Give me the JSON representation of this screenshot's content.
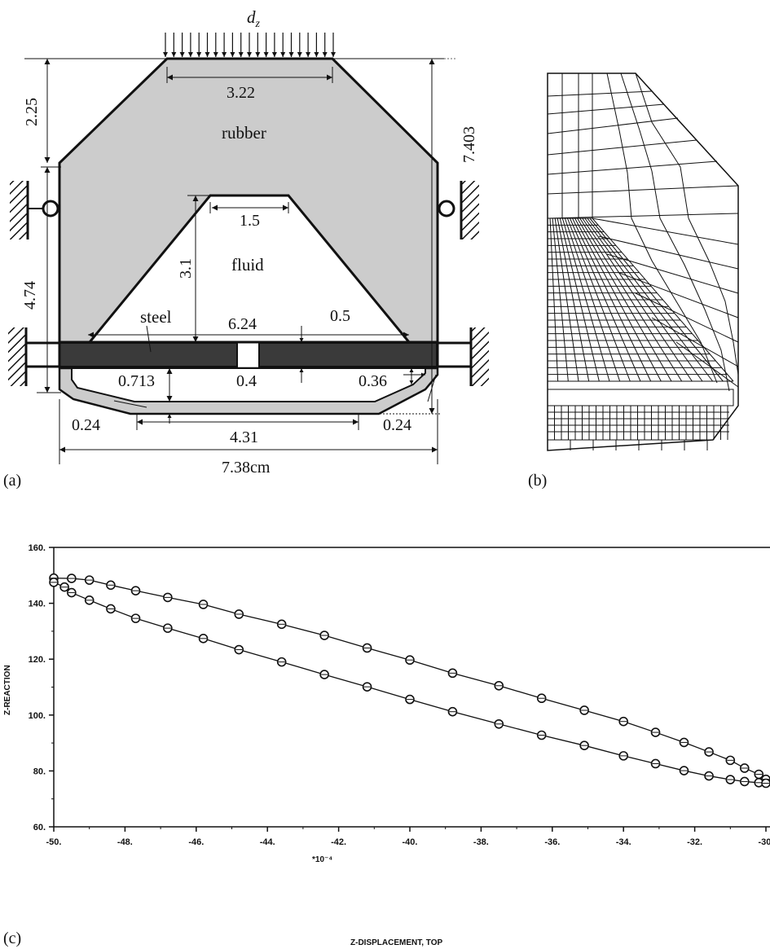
{
  "panel_a": {
    "load_label": "d_z",
    "dims": {
      "top_width": "3.22",
      "top_height": "2.25",
      "total_height": "7.403",
      "side_height": "4.74",
      "fluid_top_width": "1.5",
      "fluid_height": "3.1",
      "fluid_base": "6.24",
      "steel_thickness": "0.5",
      "gap": "0.4",
      "lower_cavity_height": "0.713",
      "corner_offset": "0.36",
      "wall_thickness_left": "0.24",
      "wall_thickness_right": "0.24",
      "bottom_width": "4.31",
      "total_width": "7.38cm"
    },
    "regions": {
      "rubber": "rubber",
      "fluid": "fluid",
      "steel": "steel"
    },
    "colors": {
      "rubber": "#cccccc",
      "steel": "#3a3a3a",
      "fluid": "#ffffff"
    },
    "panel_label": "(a)"
  },
  "panel_b": {
    "panel_label": "(b)"
  },
  "panel_c": {
    "panel_label": "(c)"
  },
  "chart_data": {
    "type": "line",
    "xlabel": "Z-DISPLACEMENT, TOP",
    "x_multiplier": "*10⁻⁴",
    "ylabel": "Z-REACTION",
    "x_ticks": [
      "-50.",
      "-48.",
      "-46.",
      "-44.",
      "-42.",
      "-40.",
      "-38.",
      "-36.",
      "-34.",
      "-32.",
      "-30."
    ],
    "y_ticks": [
      "60.",
      "80.",
      "100.",
      "120.",
      "140.",
      "160."
    ],
    "xlim": [
      -50,
      -30
    ],
    "ylim": [
      60,
      160
    ],
    "grid": false,
    "marker": "circle",
    "series": [
      {
        "x": [
          -50.0,
          -49.5,
          -49.0,
          -48.4,
          -47.7,
          -46.8,
          -45.8,
          -44.8,
          -43.6,
          -42.4,
          -41.2,
          -40.0,
          -38.8,
          -37.5,
          -36.3,
          -35.1,
          -34.0,
          -33.1,
          -32.3,
          -31.6,
          -31.0,
          -30.6,
          -30.2,
          -30.0
        ],
        "y": [
          149.0,
          148.9,
          148.3,
          146.5,
          144.5,
          142.1,
          139.6,
          136.1,
          132.5,
          128.5,
          124.0,
          119.7,
          115.0,
          110.5,
          106.0,
          101.7,
          97.7,
          93.8,
          90.2,
          86.8,
          83.8,
          81.0,
          78.8,
          77.0
        ]
      },
      {
        "x": [
          -50.0,
          -49.7,
          -49.5,
          -49.0,
          -48.4,
          -47.7,
          -46.8,
          -45.8,
          -44.8,
          -43.6,
          -42.4,
          -41.2,
          -40.0,
          -38.8,
          -37.5,
          -36.3,
          -35.1,
          -34.0,
          -33.1,
          -32.3,
          -31.6,
          -31.0,
          -30.6,
          -30.2,
          -30.0
        ],
        "y": [
          147.5,
          145.8,
          143.8,
          141.1,
          138.0,
          134.6,
          131.1,
          127.4,
          123.4,
          119.0,
          114.5,
          110.1,
          105.6,
          101.2,
          96.8,
          92.8,
          89.1,
          85.4,
          82.6,
          80.1,
          78.2,
          76.9,
          76.2,
          75.8,
          75.6
        ]
      }
    ]
  }
}
